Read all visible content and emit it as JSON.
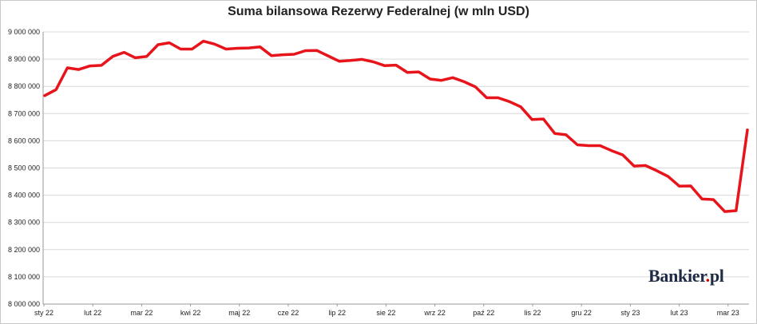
{
  "chart_data": {
    "type": "line",
    "title": "Suma bilansowa Rezerwy Federalnej (w mln USD)",
    "xlabel": "",
    "ylabel": "",
    "ylim": [
      8000000,
      9000000
    ],
    "yticks": [
      "9 000 000",
      "8 900 000",
      "8 800 000",
      "8 700 000",
      "8 600 000",
      "8 500 000",
      "8 400 000",
      "8 300 000",
      "8 200 000",
      "8 100 000",
      "8 000 000"
    ],
    "ytick_values": [
      9000000,
      8900000,
      8800000,
      8700000,
      8600000,
      8500000,
      8400000,
      8300000,
      8200000,
      8100000,
      8000000
    ],
    "xticks": [
      "sty 22",
      "lut 22",
      "mar 22",
      "kwi 22",
      "maj 22",
      "cze 22",
      "lip 22",
      "sie 22",
      "wrz 22",
      "paź 22",
      "lis 22",
      "gru 22",
      "sty 23",
      "lut 23",
      "mar 23"
    ],
    "grid": true,
    "line_color": "#e8141b",
    "series": [
      {
        "name": "",
        "values": [
          8766000,
          8788000,
          8868000,
          8862000,
          8875000,
          8877000,
          8910000,
          8925000,
          8905000,
          8910000,
          8953000,
          8960000,
          8937000,
          8937000,
          8966000,
          8955000,
          8937000,
          8940000,
          8941000,
          8945000,
          8913000,
          8916000,
          8918000,
          8931000,
          8932000,
          8912000,
          8892000,
          8895000,
          8899000,
          8890000,
          8876000,
          8878000,
          8851000,
          8853000,
          8827000,
          8822000,
          8832000,
          8817000,
          8798000,
          8758000,
          8758000,
          8744000,
          8725000,
          8678000,
          8680000,
          8627000,
          8622000,
          8585000,
          8582000,
          8582000,
          8564000,
          8548000,
          8507000,
          8509000,
          8490000,
          8469000,
          8433000,
          8434000,
          8386000,
          8384000,
          8340000,
          8343000,
          8640000
        ]
      }
    ]
  },
  "watermark": {
    "brand": "Bankier",
    "dot": ".",
    "suffix": "pl"
  }
}
